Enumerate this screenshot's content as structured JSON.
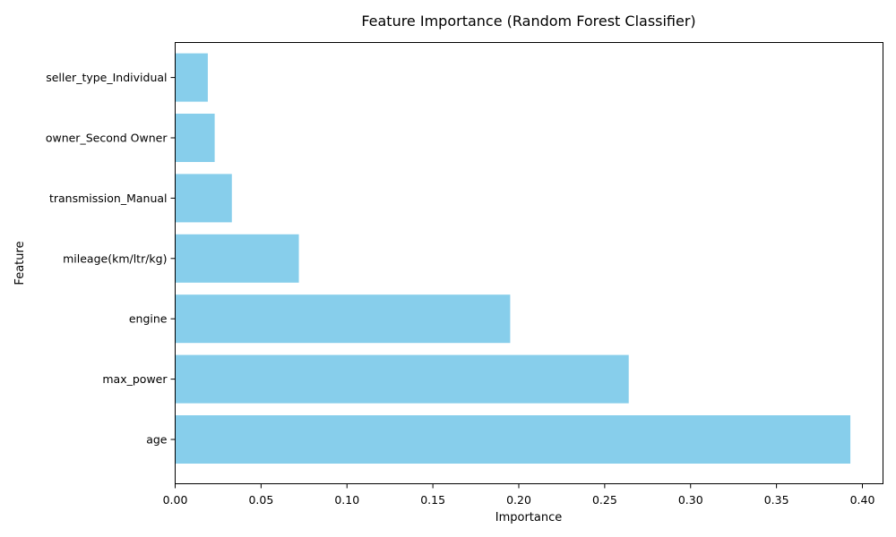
{
  "chart_data": {
    "type": "bar",
    "orientation": "horizontal",
    "title": "Feature Importance (Random Forest Classifier)",
    "xlabel": "Importance",
    "ylabel": "Feature",
    "categories": [
      "age",
      "max_power",
      "engine",
      "mileage(km/ltr/kg)",
      "transmission_Manual",
      "owner_Second Owner",
      "seller_type_Individual"
    ],
    "values": [
      0.393,
      0.264,
      0.195,
      0.072,
      0.033,
      0.023,
      0.019
    ],
    "xlim": [
      0,
      0.412
    ],
    "xticks": [
      0.0,
      0.05,
      0.1,
      0.15,
      0.2,
      0.25,
      0.3,
      0.35,
      0.4
    ],
    "xtick_labels": [
      "0.00",
      "0.05",
      "0.10",
      "0.15",
      "0.20",
      "0.25",
      "0.30",
      "0.35",
      "0.40"
    ],
    "grid": false,
    "bar_color": "#87ceeb"
  }
}
